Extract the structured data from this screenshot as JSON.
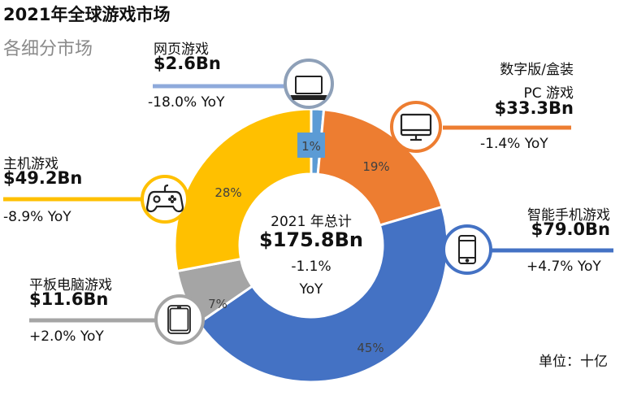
{
  "title": "2021年全球游戏市场",
  "subtitle": "各细分市场",
  "unit_label": "单位：十亿",
  "center": {
    "year_label": "2021 年总计",
    "total": "$175.8Bn",
    "yoy_value": "-1.1%",
    "yoy_label": "YoY"
  },
  "segments": {
    "browser": {
      "name": "网页游戏",
      "value": "$2.6Bn",
      "yoy": "-18.0% YoY",
      "share_label": "1%",
      "icon": "laptop-icon",
      "color": "#8eaadb"
    },
    "pc": {
      "name_line1": "数字版/盒装",
      "name_line2": "PC 游戏",
      "value": "$33.3Bn",
      "yoy": "-1.4% YoY",
      "share_label": "19%",
      "icon": "desktop-monitor-icon",
      "color": "#ed7d31"
    },
    "mobile": {
      "name": "智能手机游戏",
      "value": "$79.0Bn",
      "yoy": "+4.7% YoY",
      "share_label": "45%",
      "icon": "smartphone-icon",
      "color": "#4472c4"
    },
    "tablet": {
      "name": "平板电脑游戏",
      "value": "$11.6Bn",
      "yoy": "+2.0% YoY",
      "share_label": "7%",
      "icon": "tablet-icon",
      "color": "#a5a5a5"
    },
    "console": {
      "name": "主机游戏",
      "value": "$49.2Bn",
      "yoy": "-8.9% YoY",
      "share_label": "28%",
      "icon": "gamepad-icon",
      "color": "#ffc000"
    }
  },
  "chart_data": {
    "type": "pie",
    "subtype": "donut",
    "title": "2021年全球游戏市场",
    "subtitle": "各细分市场",
    "unit": "十亿 (USD billions)",
    "center_text": [
      "2021 年总计",
      "$175.8Bn",
      "-1.1%",
      "YoY"
    ],
    "total": 175.8,
    "total_yoy_pct": -1.1,
    "categories": [
      "网页游戏",
      "数字版/盒装 PC 游戏",
      "智能手机游戏",
      "平板电脑游戏",
      "主机游戏"
    ],
    "values": [
      2.6,
      33.3,
      79.0,
      11.6,
      49.2
    ],
    "share_pct": [
      1,
      19,
      45,
      7,
      28
    ],
    "yoy_pct": [
      -18.0,
      -1.4,
      4.7,
      2.0,
      -8.9
    ],
    "colors": [
      "#8eaadb",
      "#ed7d31",
      "#4472c4",
      "#a5a5a5",
      "#ffc000"
    ],
    "start_angle_deg": 0,
    "direction": "clockwise"
  }
}
